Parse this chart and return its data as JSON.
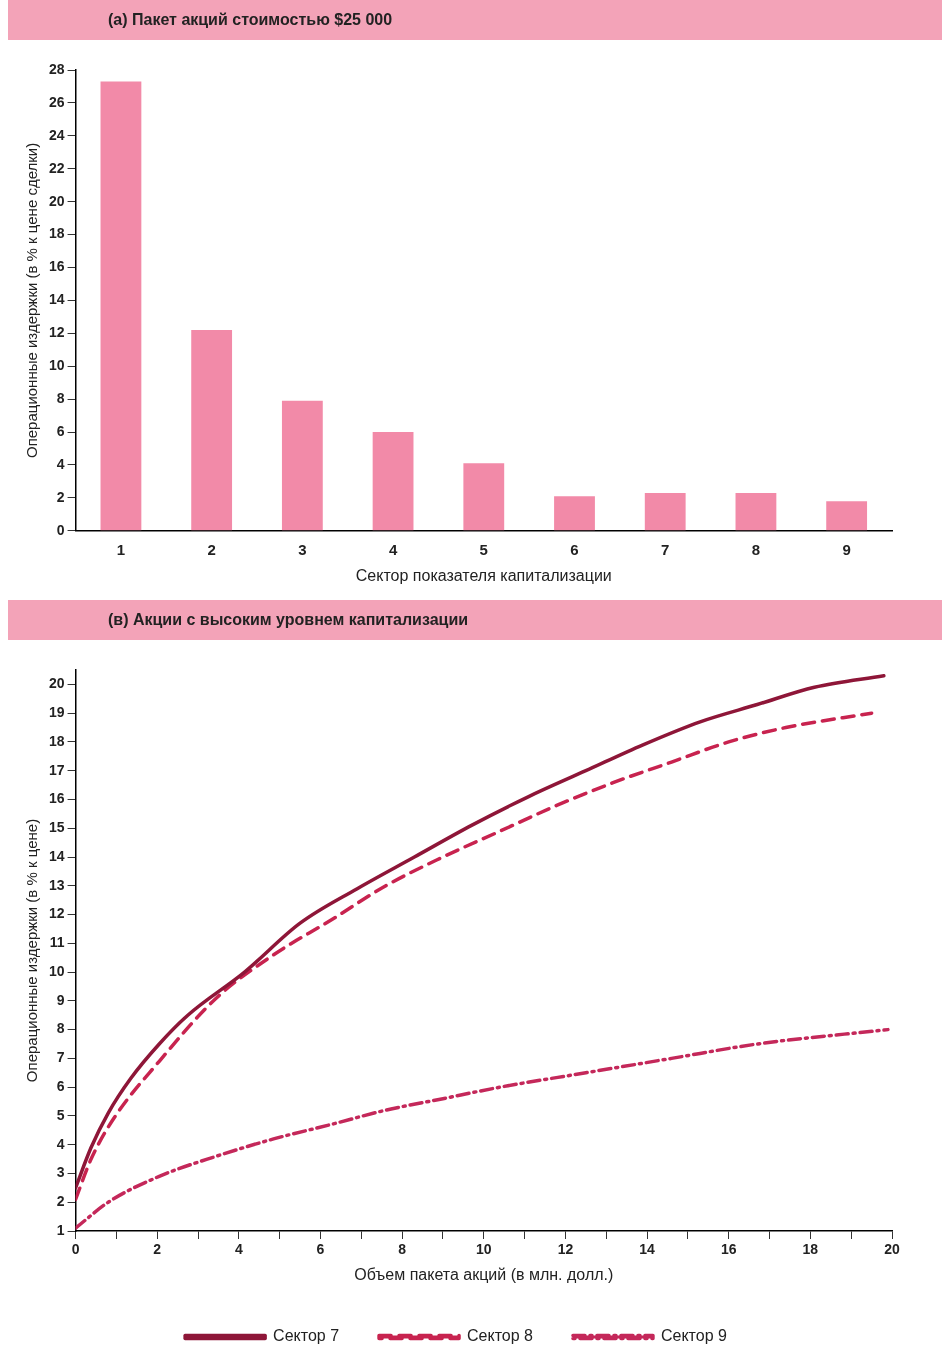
{
  "chart_data": [
    {
      "type": "bar",
      "title": "(а) Пакет акций стоимостью $25 000",
      "xlabel": "Сектор показателя капитализации",
      "ylabel": "Операционные издержки (в % к цене сделки)",
      "categories": [
        "1",
        "2",
        "3",
        "4",
        "5",
        "6",
        "7",
        "8",
        "9"
      ],
      "values": [
        27.3,
        12.2,
        7.9,
        6.0,
        4.1,
        2.1,
        2.3,
        2.3,
        1.8
      ],
      "color": "#f28aa8",
      "ylim": [
        0,
        28
      ],
      "yticks": [
        0,
        2,
        4,
        6,
        8,
        10,
        12,
        14,
        16,
        18,
        20,
        22,
        24,
        26,
        28
      ],
      "grid": false,
      "legend": false
    },
    {
      "type": "line",
      "title": "(в) Акции с высоким уровнем капитализации",
      "xlabel": "Объем пакета акций (в млн. долл.)",
      "ylabel": "Операционные издержки (в % к цене)",
      "series": [
        {
          "name": "Сектор 7",
          "color": "#8e1638",
          "line_style": "solid",
          "x": [
            0,
            0.38,
            0.8,
            1.35,
            2.05,
            2.75,
            4.14,
            5.5,
            6.9,
            8.3,
            9.7,
            11.1,
            12.5,
            13.9,
            15.3,
            16.7,
            18.1,
            19.8
          ],
          "values": [
            2.5,
            3.9,
            5.1,
            6.3,
            7.5,
            8.5,
            10.0,
            11.7,
            12.9,
            14.0,
            15.1,
            16.1,
            17.0,
            17.9,
            18.7,
            19.3,
            19.9,
            20.3
          ]
        },
        {
          "name": "Сектор 8",
          "color": "#c8234f",
          "line_style": "dashed",
          "x": [
            0,
            0.38,
            0.93,
            2.05,
            3.45,
            4.85,
            6.25,
            7.6,
            9.0,
            10.4,
            11.8,
            13.2,
            14.6,
            16.0,
            17.4,
            19.5
          ],
          "values": [
            2.1,
            3.5,
            4.9,
            6.9,
            9.1,
            10.6,
            11.8,
            13.0,
            14.0,
            14.9,
            15.8,
            16.6,
            17.3,
            18.0,
            18.5,
            19.0
          ]
        },
        {
          "name": "Сектор 9",
          "color": "#c4285a",
          "line_style": "dotted",
          "x": [
            0,
            0.8,
            2.05,
            3.45,
            4.85,
            6.25,
            7.6,
            9.0,
            10.4,
            12.5,
            14.6,
            16.7,
            19.9
          ],
          "values": [
            1.1,
            2.0,
            2.9,
            3.6,
            4.2,
            4.7,
            5.2,
            5.6,
            6.0,
            6.5,
            7.0,
            7.5,
            8.0
          ]
        }
      ],
      "xlim": [
        0,
        20
      ],
      "xticks": [
        0,
        {
          "value": 1,
          "label": null
        },
        2,
        {
          "value": 3,
          "label": null
        },
        4,
        {
          "value": 5,
          "label": null
        },
        6,
        {
          "value": 7,
          "label": null
        },
        8,
        {
          "value": 9,
          "label": null
        },
        10,
        {
          "value": 11,
          "label": null
        },
        12,
        {
          "value": 13,
          "label": null
        },
        14,
        {
          "value": 15,
          "label": null
        },
        16,
        {
          "value": 17,
          "label": null
        },
        18,
        {
          "value": 19,
          "label": null
        },
        20
      ],
      "ylim": [
        1,
        20.5
      ],
      "yticks": [
        1,
        2,
        3,
        4,
        5,
        6,
        7,
        8,
        9,
        10,
        11,
        12,
        13,
        14,
        15,
        16,
        17,
        18,
        19,
        20
      ],
      "grid": false,
      "legend": "bottom",
      "marker": "none"
    }
  ]
}
